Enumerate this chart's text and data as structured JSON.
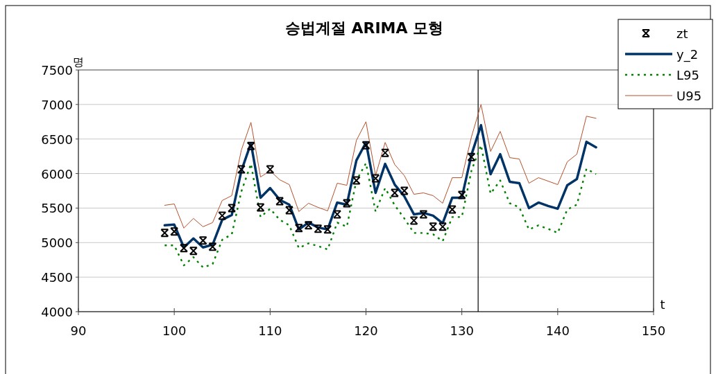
{
  "chart_data": {
    "type": "line",
    "title": "승법계절 ARIMA 모형",
    "xlabel": "t",
    "ylabel": "명",
    "x": [
      99,
      100,
      101,
      102,
      103,
      104,
      105,
      106,
      107,
      108,
      109,
      110,
      111,
      112,
      113,
      114,
      115,
      116,
      117,
      118,
      119,
      120,
      121,
      122,
      123,
      124,
      125,
      126,
      127,
      128,
      129,
      130,
      131,
      132,
      133,
      134,
      135,
      136,
      137,
      138,
      139,
      140,
      141,
      142,
      143,
      144
    ],
    "series": [
      {
        "name": "zt",
        "type": "scatter",
        "marker": "cross",
        "color": "#000000",
        "values": [
          5140,
          5160,
          4920,
          4880,
          5030,
          4940,
          5390,
          5500,
          6060,
          6400,
          5510,
          6060,
          5600,
          5470,
          5210,
          5250,
          5200,
          5190,
          5410,
          5570,
          5900,
          6410,
          5930,
          6300,
          5720,
          5750,
          5320,
          5410,
          5230,
          5230,
          5480,
          5690,
          6240,
          null,
          null,
          null,
          null,
          null,
          null,
          null,
          null,
          null,
          null,
          null,
          null,
          null
        ]
      },
      {
        "name": "y_2",
        "line_style": "solid",
        "color": "#003366",
        "values": [
          5250,
          5260,
          4930,
          5060,
          4930,
          4970,
          5330,
          5400,
          6040,
          6440,
          5650,
          5790,
          5620,
          5550,
          5190,
          5290,
          5220,
          5190,
          5580,
          5550,
          6190,
          6450,
          5720,
          6140,
          5840,
          5670,
          5410,
          5430,
          5390,
          5280,
          5650,
          5650,
          6270,
          6700,
          5990,
          6280,
          5880,
          5860,
          5500,
          5580,
          5530,
          5490,
          5830,
          5920,
          6460,
          6380
        ]
      },
      {
        "name": "L95",
        "line_style": "dotted",
        "color": "#008000",
        "values": [
          4960,
          4960,
          4670,
          4790,
          4640,
          4690,
          5040,
          5120,
          5740,
          6140,
          5370,
          5490,
          5330,
          5250,
          4920,
          4990,
          4950,
          4900,
          5290,
          5230,
          5900,
          6150,
          5450,
          5790,
          5540,
          5350,
          5140,
          5140,
          5120,
          5020,
          5370,
          5370,
          6040,
          6410,
          5710,
          5900,
          5570,
          5510,
          5190,
          5250,
          5200,
          5140,
          5480,
          5550,
          6070,
          5990
        ]
      },
      {
        "name": "U95",
        "line_style": "solid",
        "color": "#b5502a",
        "values": [
          5540,
          5560,
          5210,
          5350,
          5230,
          5290,
          5610,
          5680,
          6340,
          6740,
          5950,
          6040,
          5910,
          5840,
          5450,
          5570,
          5510,
          5460,
          5860,
          5830,
          6480,
          6750,
          5970,
          6450,
          6130,
          5970,
          5700,
          5720,
          5680,
          5570,
          5940,
          5940,
          6530,
          7000,
          6320,
          6610,
          6230,
          6210,
          5860,
          5940,
          5890,
          5840,
          6170,
          6280,
          6830,
          6800
        ]
      }
    ],
    "xlim": [
      90,
      150
    ],
    "ylim": [
      4000,
      7500
    ],
    "xticks": [
      90,
      100,
      110,
      120,
      130,
      140,
      150
    ],
    "yticks": [
      4000,
      4500,
      5000,
      5500,
      6000,
      6500,
      7000,
      7500
    ],
    "grid": "y",
    "legend": "top right",
    "ref_lines": [
      {
        "axis": "x",
        "value": 131.7,
        "color": "#000000"
      }
    ]
  }
}
